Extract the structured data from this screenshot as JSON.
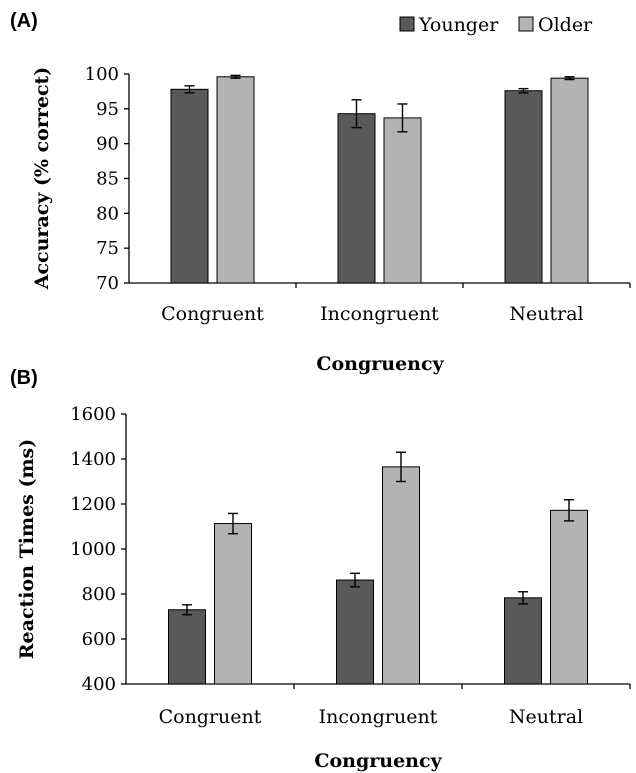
{
  "colors": {
    "younger": "#595959",
    "older": "#b3b3b3"
  },
  "legend": [
    {
      "label": "Younger",
      "color": "#595959"
    },
    {
      "label": "Older",
      "color": "#b3b3b3"
    }
  ],
  "chart_data": [
    {
      "panel": "(A)",
      "type": "bar",
      "categories": [
        "Congruent",
        "Incongruent",
        "Neutral"
      ],
      "series": [
        {
          "name": "Younger",
          "values": [
            97.8,
            94.3,
            97.6
          ],
          "errors": [
            0.5,
            2.0,
            0.3
          ]
        },
        {
          "name": "Older",
          "values": [
            99.6,
            93.7,
            99.4
          ],
          "errors": [
            0.2,
            2.0,
            0.2
          ]
        }
      ],
      "xlabel": "Congruency",
      "ylabel": "Accuracy (% correct)",
      "ylim": [
        70,
        100
      ],
      "yticks": [
        70,
        75,
        80,
        85,
        90,
        95,
        100
      ],
      "legend_position": "top-right",
      "grid": false
    },
    {
      "panel": "(B)",
      "type": "bar",
      "categories": [
        "Congruent",
        "Incongruent",
        "Neutral"
      ],
      "series": [
        {
          "name": "Younger",
          "values": [
            730,
            862,
            783
          ],
          "errors": [
            22,
            30,
            27
          ]
        },
        {
          "name": "Older",
          "values": [
            1113,
            1365,
            1172
          ],
          "errors": [
            45,
            65,
            47
          ]
        }
      ],
      "xlabel": "Congruency",
      "ylabel": "Reaction Times (ms)",
      "ylim": [
        400,
        1600
      ],
      "yticks": [
        400,
        600,
        800,
        1000,
        1200,
        1400,
        1600
      ],
      "grid": false
    }
  ]
}
